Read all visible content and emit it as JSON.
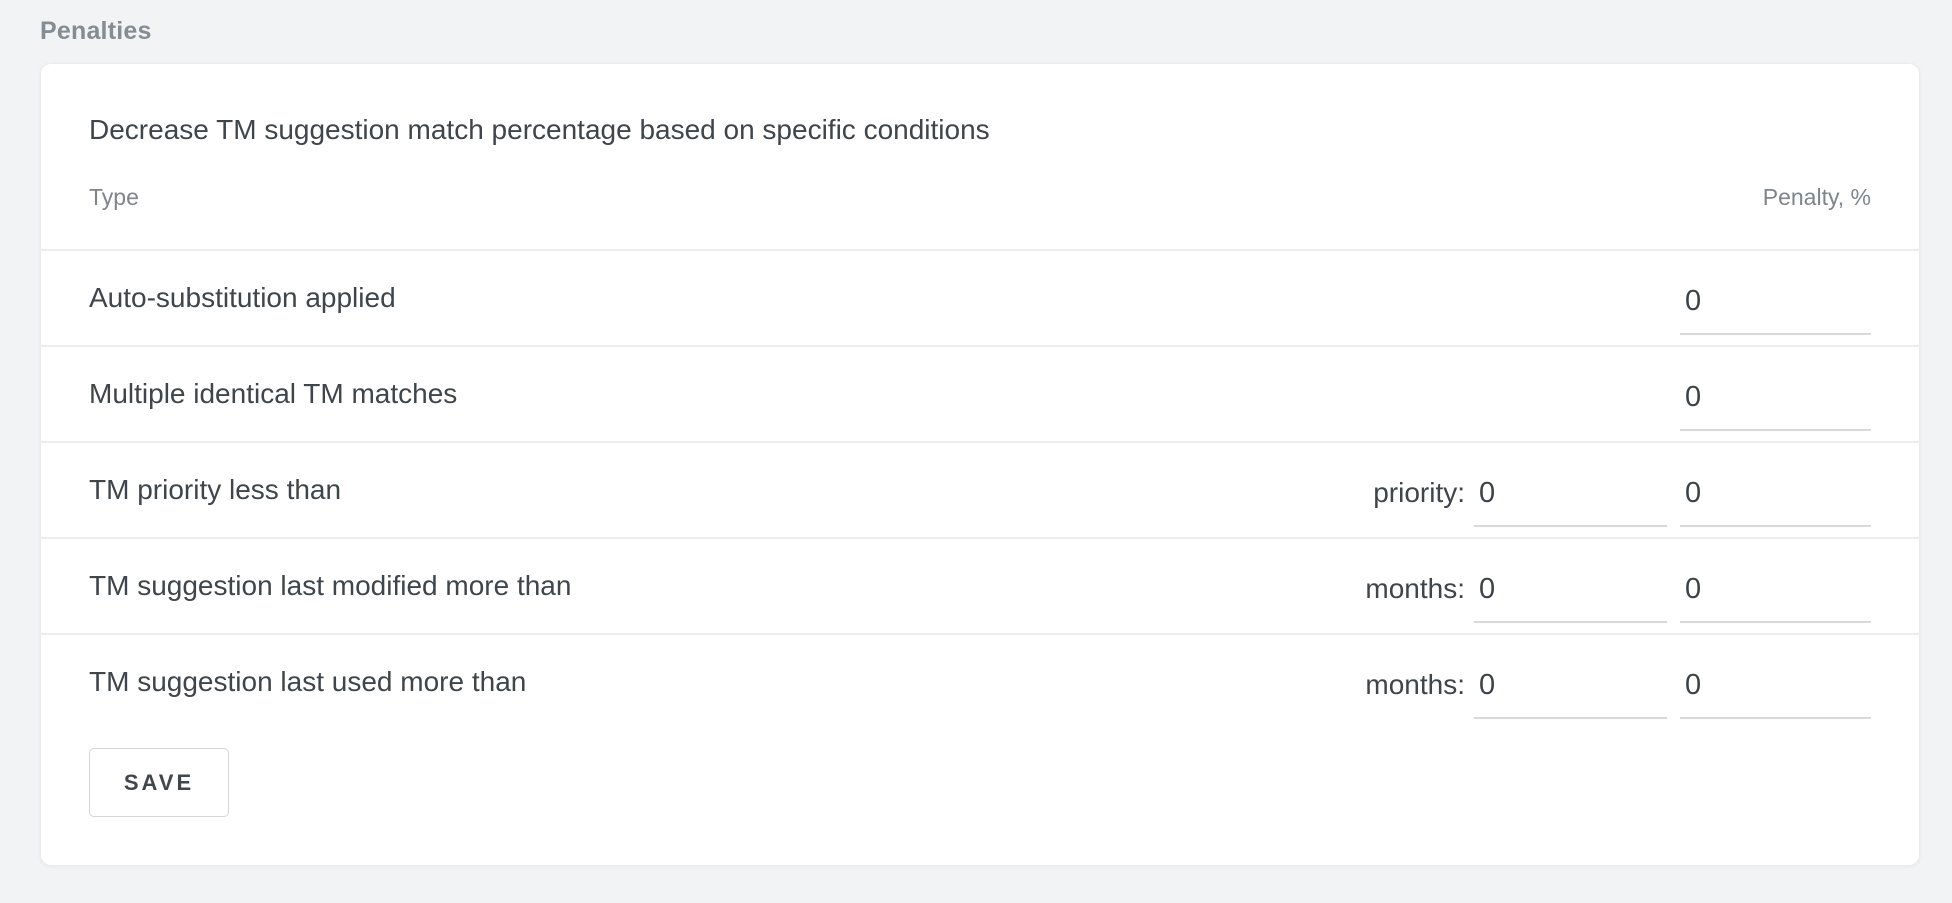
{
  "page": {
    "heading": "Penalties"
  },
  "panel": {
    "title": "Decrease TM suggestion match percentage based on specific conditions",
    "columns": {
      "type": "Type",
      "penalty": "Penalty, %"
    },
    "rows": [
      {
        "type": "Auto-substitution applied",
        "penalty_value": "0"
      },
      {
        "type": "Multiple identical TM matches",
        "penalty_value": "0"
      },
      {
        "type": "TM priority less than",
        "condition_label": "priority:",
        "condition_value": "0",
        "penalty_value": "0"
      },
      {
        "type": "TM suggestion last modified more than",
        "condition_label": "months:",
        "condition_value": "0",
        "penalty_value": "0"
      },
      {
        "type": "TM suggestion last used more than",
        "condition_label": "months:",
        "condition_value": "0",
        "penalty_value": "0"
      }
    ],
    "save_label": "SAVE"
  },
  "colors": {
    "page_background": "#f2f3f5",
    "card_background": "#ffffff",
    "text_primary": "#3e454b",
    "text_secondary": "#7f858c",
    "divider": "#ebedee",
    "input_underline": "#d7d9db",
    "button_border": "#d4d7da"
  }
}
